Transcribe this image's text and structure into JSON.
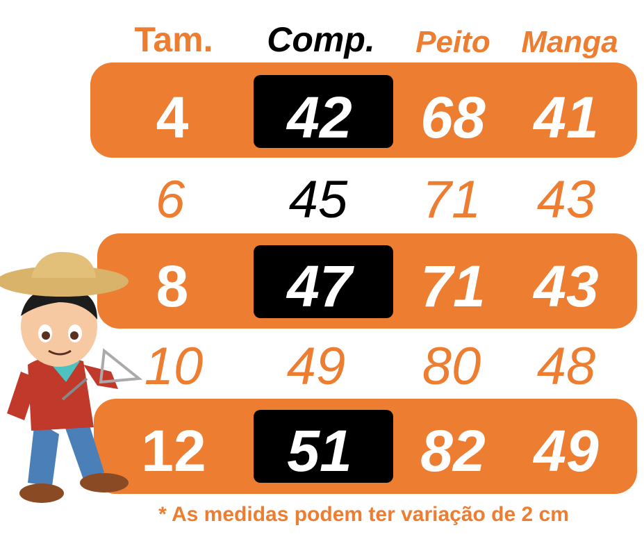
{
  "headers": [
    "Tam.",
    "Comp.",
    "Peito",
    "Manga"
  ],
  "rows": [
    {
      "tam": "4",
      "comp": "42",
      "peito": "68",
      "manga": "41",
      "highlight": true
    },
    {
      "tam": "6",
      "comp": "45",
      "peito": "71",
      "manga": "43",
      "highlight": false
    },
    {
      "tam": "8",
      "comp": "47",
      "peito": "71",
      "manga": "43",
      "highlight": true
    },
    {
      "tam": "10",
      "comp": "49",
      "peito": "80",
      "manga": "48",
      "highlight": false
    },
    {
      "tam": "12",
      "comp": "51",
      "peito": "82",
      "manga": "49",
      "highlight": true
    }
  ],
  "note": "* As medidas podem ter variação de 2 cm",
  "colors": {
    "accent": "#ED7D31",
    "highlight_box": "#000000",
    "text_light": "#FFFFFF"
  },
  "illustration": "cartoon-boy-with-straw-hat-and-triangle"
}
